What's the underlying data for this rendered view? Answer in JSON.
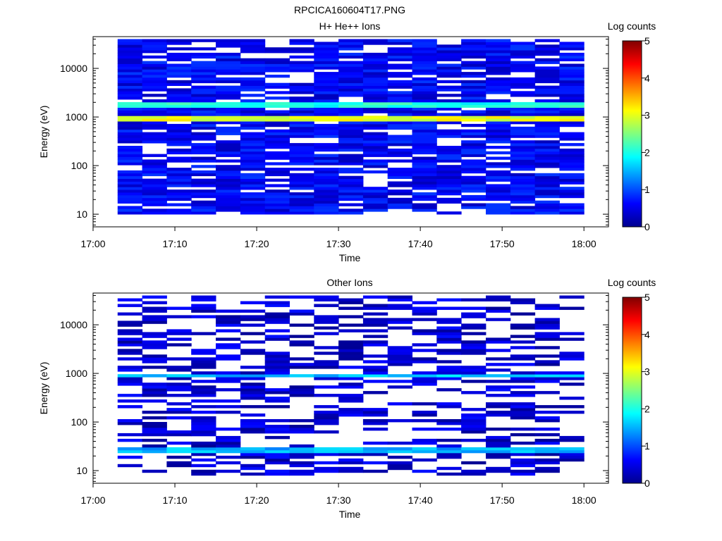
{
  "figure_title": "RPCICA160604T17.PNG",
  "chart_data": [
    {
      "type": "heatmap",
      "title": "H+ He++ Ions",
      "xlabel": "Time",
      "ylabel": "Energy (eV)",
      "x_range": [
        "17:00",
        "18:03"
      ],
      "x_ticks": [
        "17:00",
        "17:10",
        "17:20",
        "17:30",
        "17:40",
        "17:50",
        "18:00"
      ],
      "y_scale": "log",
      "y_range": [
        5.5,
        45000
      ],
      "y_ticks": [
        "10",
        "100",
        "1000",
        "10000"
      ],
      "time_columns": [
        "17:03",
        "17:06",
        "17:09",
        "17:12",
        "17:15",
        "17:18",
        "17:21",
        "17:24",
        "17:27",
        "17:30",
        "17:33",
        "17:36",
        "17:39",
        "17:42",
        "17:45",
        "17:48",
        "17:51",
        "17:54",
        "17:57"
      ],
      "energy_bin_range_eV": [
        10,
        40000
      ],
      "count_bands": [
        {
          "energy_low_eV": 800,
          "energy_high_eV": 1050,
          "log_counts": 3.0
        },
        {
          "energy_low_eV": 1600,
          "energy_high_eV": 2000,
          "log_counts": 2.0
        },
        {
          "energy_low_eV": 10,
          "energy_high_eV": 40000,
          "log_counts": 0.5
        }
      ],
      "colorbar": {
        "label": "Log counts",
        "min": 0,
        "max": 5,
        "ticks": [
          "0",
          "1",
          "2",
          "3",
          "4",
          "5"
        ]
      }
    },
    {
      "type": "heatmap",
      "title": "Other Ions",
      "xlabel": "Time",
      "ylabel": "Energy (eV)",
      "x_range": [
        "17:00",
        "18:03"
      ],
      "x_ticks": [
        "17:00",
        "17:10",
        "17:20",
        "17:30",
        "17:40",
        "17:50",
        "18:00"
      ],
      "y_scale": "log",
      "y_range": [
        5.5,
        45000
      ],
      "y_ticks": [
        "10",
        "100",
        "1000",
        "10000"
      ],
      "time_columns": [
        "17:03",
        "17:06",
        "17:09",
        "17:12",
        "17:15",
        "17:18",
        "17:21",
        "17:24",
        "17:27",
        "17:30",
        "17:33",
        "17:36",
        "17:39",
        "17:42",
        "17:45",
        "17:48",
        "17:51",
        "17:54",
        "17:57"
      ],
      "energy_bin_range_eV": [
        8,
        40000
      ],
      "count_bands": [
        {
          "energy_low_eV": 850,
          "energy_high_eV": 1000,
          "log_counts": 1.6
        },
        {
          "energy_low_eV": 22,
          "energy_high_eV": 32,
          "log_counts": 1.5
        },
        {
          "energy_low_eV": 8,
          "energy_high_eV": 40000,
          "log_counts": 0.3
        }
      ],
      "colorbar": {
        "label": "Log counts",
        "min": 0,
        "max": 5,
        "ticks": [
          "0",
          "1",
          "2",
          "3",
          "4",
          "5"
        ]
      }
    }
  ]
}
